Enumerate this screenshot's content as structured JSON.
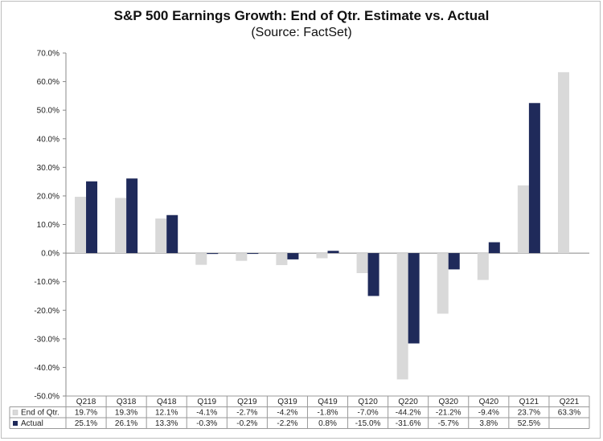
{
  "chart_data": {
    "type": "bar",
    "title": "S&P 500 Earnings Growth: End of Qtr. Estimate vs. Actual",
    "subtitle": "(Source: FactSet)",
    "categories": [
      "Q218",
      "Q318",
      "Q418",
      "Q119",
      "Q219",
      "Q319",
      "Q419",
      "Q120",
      "Q220",
      "Q320",
      "Q420",
      "Q121",
      "Q221"
    ],
    "series": [
      {
        "name": "End of Qtr.",
        "color": "#d9d9d9",
        "values": [
          19.7,
          19.3,
          12.1,
          -4.1,
          -2.7,
          -4.2,
          -1.8,
          -7.0,
          -44.2,
          -21.2,
          -9.4,
          23.7,
          63.3
        ],
        "labels": [
          "19.7%",
          "19.3%",
          "12.1%",
          "-4.1%",
          "-2.7%",
          "-4.2%",
          "-1.8%",
          "-7.0%",
          "-44.2%",
          "-21.2%",
          "-9.4%",
          "23.7%",
          "63.3%"
        ]
      },
      {
        "name": "Actual",
        "color": "#1f2a5a",
        "values": [
          25.1,
          26.1,
          13.3,
          -0.3,
          -0.2,
          -2.2,
          0.8,
          -15.0,
          -31.6,
          -5.7,
          3.8,
          52.5,
          null
        ],
        "labels": [
          "25.1%",
          "26.1%",
          "13.3%",
          "-0.3%",
          "-0.2%",
          "-2.2%",
          "0.8%",
          "-15.0%",
          "-31.6%",
          "-5.7%",
          "3.8%",
          "52.5%",
          ""
        ]
      }
    ],
    "ylim": [
      -50,
      70
    ],
    "yticks": [
      70,
      60,
      50,
      40,
      30,
      20,
      10,
      0,
      -10,
      -20,
      -30,
      -40,
      -50
    ],
    "ytick_labels": [
      "70.0%",
      "60.0%",
      "50.0%",
      "40.0%",
      "30.0%",
      "20.0%",
      "10.0%",
      "0.0%",
      "-10.0%",
      "-20.0%",
      "-30.0%",
      "-40.0%",
      "-50.0%"
    ],
    "grid": false,
    "legend": "data-table-bottom"
  }
}
